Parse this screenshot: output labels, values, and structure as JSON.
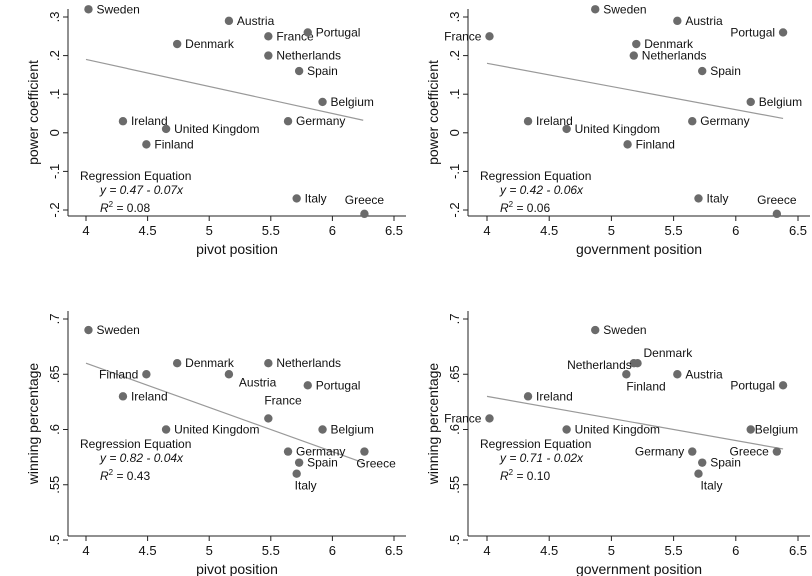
{
  "chart_data": [
    {
      "type": "scatter",
      "xlabel": "pivot position",
      "ylabel": "power coefficient",
      "xlim": [
        4,
        6.5
      ],
      "xticks": [
        "4",
        "4.5",
        "5",
        "5.5",
        "6",
        "6.5"
      ],
      "ylim": [
        -0.2,
        0.3
      ],
      "yticks": [
        "-.2",
        "-.1",
        "0",
        ".1",
        ".2",
        ".3"
      ],
      "points": [
        {
          "label": "Sweden",
          "x": 4.02,
          "y": 0.32
        },
        {
          "label": "Austria",
          "x": 5.16,
          "y": 0.29
        },
        {
          "label": "France",
          "x": 5.48,
          "y": 0.25
        },
        {
          "label": "Portugal",
          "x": 5.8,
          "y": 0.26
        },
        {
          "label": "Denmark",
          "x": 4.74,
          "y": 0.23
        },
        {
          "label": "Netherlands",
          "x": 5.48,
          "y": 0.2
        },
        {
          "label": "Spain",
          "x": 5.73,
          "y": 0.16
        },
        {
          "label": "Belgium",
          "x": 5.92,
          "y": 0.08
        },
        {
          "label": "Ireland",
          "x": 4.3,
          "y": 0.03
        },
        {
          "label": "United Kingdom",
          "x": 4.65,
          "y": 0.01
        },
        {
          "label": "Germany",
          "x": 5.64,
          "y": 0.03
        },
        {
          "label": "Finland",
          "x": 4.49,
          "y": -0.03
        },
        {
          "label": "Italy",
          "x": 5.71,
          "y": -0.17
        },
        {
          "label": "Greece",
          "x": 6.26,
          "y": -0.21
        }
      ],
      "regression": {
        "intercept": 0.47,
        "slope": -0.07,
        "x_range": [
          4,
          6.25
        ]
      },
      "annotation": {
        "title": "Regression Equation",
        "equation": "y = 0.47 - 0.07x",
        "r2_value": "= 0.08"
      }
    },
    {
      "type": "scatter",
      "xlabel": "government position",
      "ylabel": "power coefficient",
      "xlim": [
        4,
        6.5
      ],
      "xticks": [
        "4",
        "4.5",
        "5",
        "5.5",
        "6",
        "6.5"
      ],
      "ylim": [
        -0.2,
        0.3
      ],
      "yticks": [
        "-.2",
        "-.1",
        "0",
        ".1",
        ".2",
        ".3"
      ],
      "points": [
        {
          "label": "Sweden",
          "x": 4.87,
          "y": 0.32
        },
        {
          "label": "Austria",
          "x": 5.53,
          "y": 0.29
        },
        {
          "label": "France",
          "x": 4.02,
          "y": 0.25
        },
        {
          "label": "Portugal",
          "x": 6.38,
          "y": 0.26
        },
        {
          "label": "Denmark",
          "x": 5.2,
          "y": 0.23
        },
        {
          "label": "Netherlands",
          "x": 5.18,
          "y": 0.2
        },
        {
          "label": "Spain",
          "x": 5.73,
          "y": 0.16
        },
        {
          "label": "Belgium",
          "x": 6.12,
          "y": 0.08
        },
        {
          "label": "Ireland",
          "x": 4.33,
          "y": 0.03
        },
        {
          "label": "United Kingdom",
          "x": 4.64,
          "y": 0.01
        },
        {
          "label": "Germany",
          "x": 5.65,
          "y": 0.03
        },
        {
          "label": "Finland",
          "x": 5.13,
          "y": -0.03
        },
        {
          "label": "Italy",
          "x": 5.7,
          "y": -0.17
        },
        {
          "label": "Greece",
          "x": 6.33,
          "y": -0.21
        }
      ],
      "regression": {
        "intercept": 0.42,
        "slope": -0.06,
        "x_range": [
          4,
          6.38
        ]
      },
      "annotation": {
        "title": "Regression Equation",
        "equation": "y = 0.42 - 0.06x",
        "r2_value": "= 0.06"
      }
    },
    {
      "type": "scatter",
      "xlabel": "pivot position",
      "ylabel": "winning percentage",
      "xlim": [
        4,
        6.5
      ],
      "xticks": [
        "4",
        "4.5",
        "5",
        "5.5",
        "6",
        "6.5"
      ],
      "ylim": [
        0.5,
        0.7
      ],
      "yticks": [
        ".5",
        ".55",
        ".6",
        ".65",
        ".7"
      ],
      "points": [
        {
          "label": "Sweden",
          "x": 4.02,
          "y": 0.69
        },
        {
          "label": "Denmark",
          "x": 4.74,
          "y": 0.66
        },
        {
          "label": "Netherlands",
          "x": 5.48,
          "y": 0.66
        },
        {
          "label": "Finland",
          "x": 4.49,
          "y": 0.65
        },
        {
          "label": "Austria",
          "x": 5.16,
          "y": 0.65
        },
        {
          "label": "Portugal",
          "x": 5.8,
          "y": 0.64
        },
        {
          "label": "Ireland",
          "x": 4.3,
          "y": 0.63
        },
        {
          "label": "France",
          "x": 5.48,
          "y": 0.61
        },
        {
          "label": "United Kingdom",
          "x": 4.65,
          "y": 0.6
        },
        {
          "label": "Belgium",
          "x": 5.92,
          "y": 0.6
        },
        {
          "label": "Germany",
          "x": 5.64,
          "y": 0.58
        },
        {
          "label": "Greece",
          "x": 6.26,
          "y": 0.58
        },
        {
          "label": "Spain",
          "x": 5.73,
          "y": 0.57
        },
        {
          "label": "Italy",
          "x": 5.71,
          "y": 0.56
        }
      ],
      "regression": {
        "intercept": 0.82,
        "slope": -0.04,
        "x_range": [
          4,
          6.25
        ]
      },
      "annotation": {
        "title": "Regression Equation",
        "equation": "y = 0.82 - 0.04x",
        "r2_value": "= 0.43"
      }
    },
    {
      "type": "scatter",
      "xlabel": "government position",
      "ylabel": "winning percentage",
      "xlim": [
        4,
        6.5
      ],
      "xticks": [
        "4",
        "4.5",
        "5",
        "5.5",
        "6",
        "6.5"
      ],
      "ylim": [
        0.5,
        0.7
      ],
      "yticks": [
        ".5",
        ".55",
        ".6",
        ".65",
        ".7"
      ],
      "points": [
        {
          "label": "Sweden",
          "x": 4.87,
          "y": 0.69
        },
        {
          "label": "Denmark",
          "x": 5.21,
          "y": 0.66
        },
        {
          "label": "Netherlands",
          "x": 5.18,
          "y": 0.66
        },
        {
          "label": "Finland",
          "x": 5.12,
          "y": 0.65
        },
        {
          "label": "Austria",
          "x": 5.53,
          "y": 0.65
        },
        {
          "label": "Portugal",
          "x": 6.38,
          "y": 0.64
        },
        {
          "label": "Ireland",
          "x": 4.33,
          "y": 0.63
        },
        {
          "label": "France",
          "x": 4.02,
          "y": 0.61
        },
        {
          "label": "United Kingdom",
          "x": 4.64,
          "y": 0.6
        },
        {
          "label": "Belgium",
          "x": 6.12,
          "y": 0.6
        },
        {
          "label": "Germany",
          "x": 5.65,
          "y": 0.58
        },
        {
          "label": "Greece",
          "x": 6.33,
          "y": 0.58
        },
        {
          "label": "Spain",
          "x": 5.73,
          "y": 0.57
        },
        {
          "label": "Italy",
          "x": 5.7,
          "y": 0.56
        }
      ],
      "regression": {
        "intercept": 0.71,
        "slope": -0.02,
        "x_range": [
          4,
          6.38
        ]
      },
      "annotation": {
        "title": "Regression Equation",
        "equation": "y = 0.71 - 0.02x",
        "r2_value": "= 0.10"
      }
    }
  ]
}
